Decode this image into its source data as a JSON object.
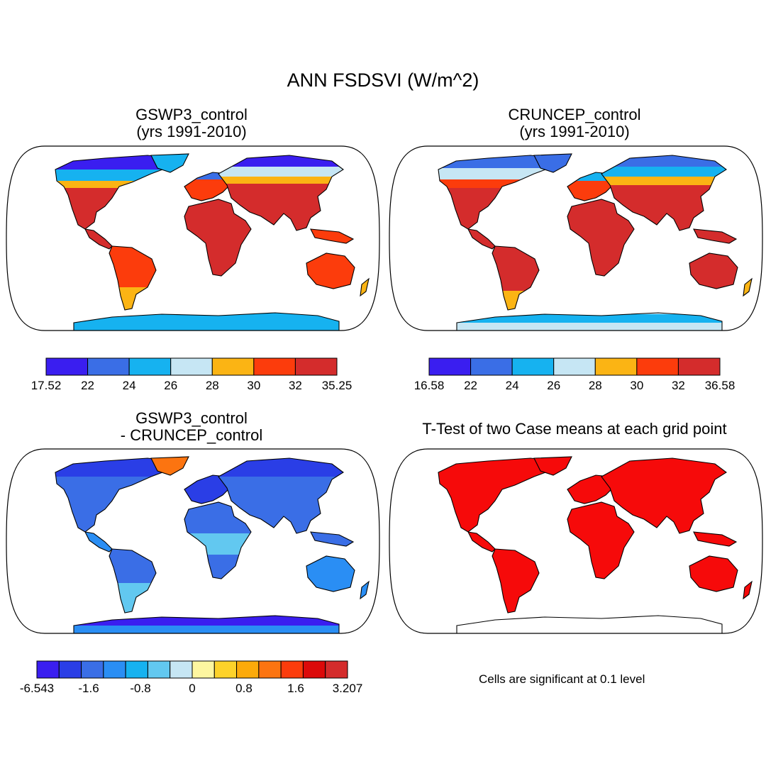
{
  "figure": {
    "title": "ANN FSDSVI (W/m^2)"
  },
  "panels": [
    {
      "id": "gswp3",
      "title_line1": "GSWP3_control",
      "title_line2": "(yrs 1991-2010)",
      "colorbar": {
        "colors": [
          "#3a1ef0",
          "#3a6ee6",
          "#16b2f0",
          "#c6e6f4",
          "#fbb414",
          "#fc3c0c",
          "#d42c2c"
        ],
        "labels": [
          "17.52",
          "22",
          "24",
          "26",
          "28",
          "30",
          "32",
          "35.25"
        ]
      }
    },
    {
      "id": "cruncep",
      "title_line1": "CRUNCEP_control",
      "title_line2": "(yrs 1991-2010)",
      "colorbar": {
        "colors": [
          "#3a1ef0",
          "#3a6ee6",
          "#16b2f0",
          "#c6e6f4",
          "#fbb414",
          "#fc3c0c",
          "#d42c2c"
        ],
        "labels": [
          "16.58",
          "22",
          "24",
          "26",
          "28",
          "30",
          "32",
          "36.58"
        ]
      }
    },
    {
      "id": "diff",
      "title_line1": "GSWP3_control",
      "title_line2": "- CRUNCEP_control",
      "colorbar": {
        "colors": [
          "#3a1ef0",
          "#2a3ee6",
          "#3a6ee6",
          "#2a8ef4",
          "#16b2f0",
          "#62c8f0",
          "#c6e6f4",
          "#fdf6a0",
          "#fdd22a",
          "#fcaa0a",
          "#fc7410",
          "#fc3c0c",
          "#dc0a0a",
          "#d42c2c"
        ],
        "labels": [
          "-6.543",
          "-1.6",
          "-0.8",
          "0",
          "0.8",
          "1.6",
          "3.207"
        ]
      }
    },
    {
      "id": "ttest",
      "title_line1": "T-Test of two Case means at each grid point",
      "note": "Cells are significant at 0.1 level"
    }
  ]
}
